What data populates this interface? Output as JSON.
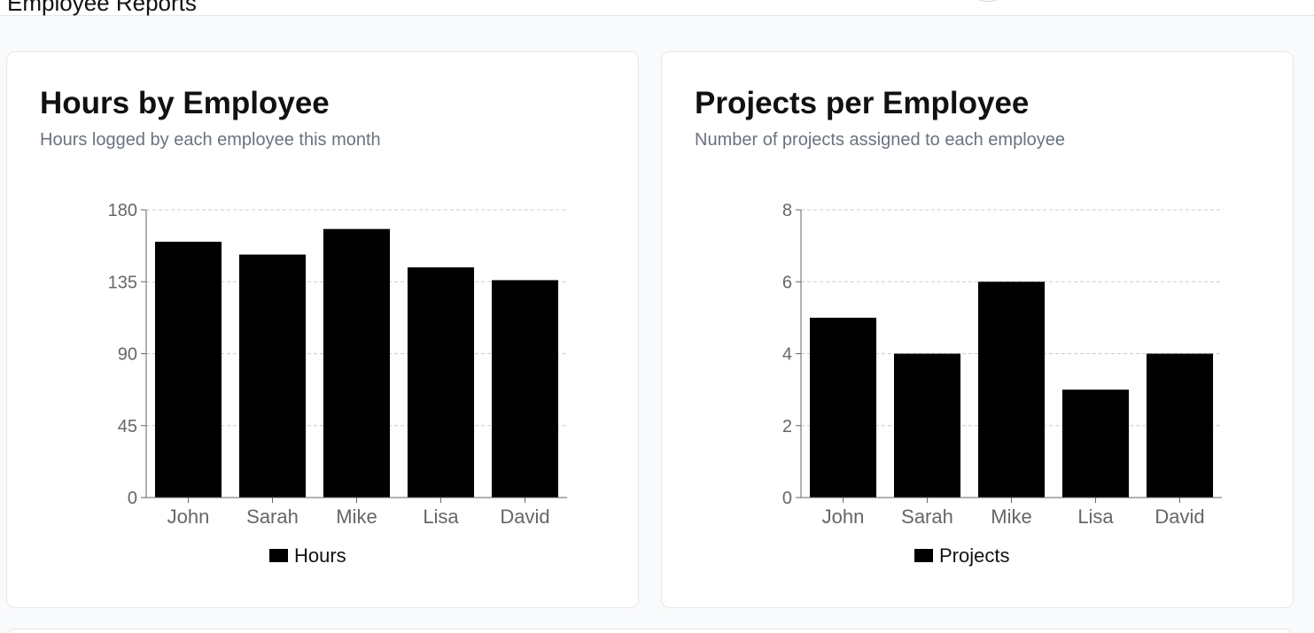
{
  "page": {
    "title": "Employee Reports"
  },
  "chart_data": [
    {
      "type": "bar",
      "title": "Hours by Employee",
      "subtitle": "Hours logged by each employee this month",
      "categories": [
        "John",
        "Sarah",
        "Mike",
        "Lisa",
        "David"
      ],
      "series": [
        {
          "name": "Hours",
          "values": [
            160,
            152,
            168,
            144,
            136
          ],
          "color": "#000000"
        }
      ],
      "ylim": [
        0,
        180
      ],
      "yticks": [
        0,
        45,
        90,
        135,
        180
      ],
      "ytick_labels": [
        "0",
        "45",
        "90",
        "135",
        "180"
      ],
      "grid": true,
      "legend": "bottom-center"
    },
    {
      "type": "bar",
      "title": "Projects per Employee",
      "subtitle": "Number of projects assigned to each employee",
      "categories": [
        "John",
        "Sarah",
        "Mike",
        "Lisa",
        "David"
      ],
      "series": [
        {
          "name": "Projects",
          "values": [
            5,
            4,
            6,
            3,
            4
          ],
          "color": "#000000"
        }
      ],
      "ylim": [
        0,
        8
      ],
      "yticks": [
        0,
        2,
        4,
        6,
        8
      ],
      "ytick_labels": [
        "0",
        "2",
        "4",
        "6",
        "8"
      ],
      "grid": true,
      "legend": "bottom-center"
    }
  ]
}
